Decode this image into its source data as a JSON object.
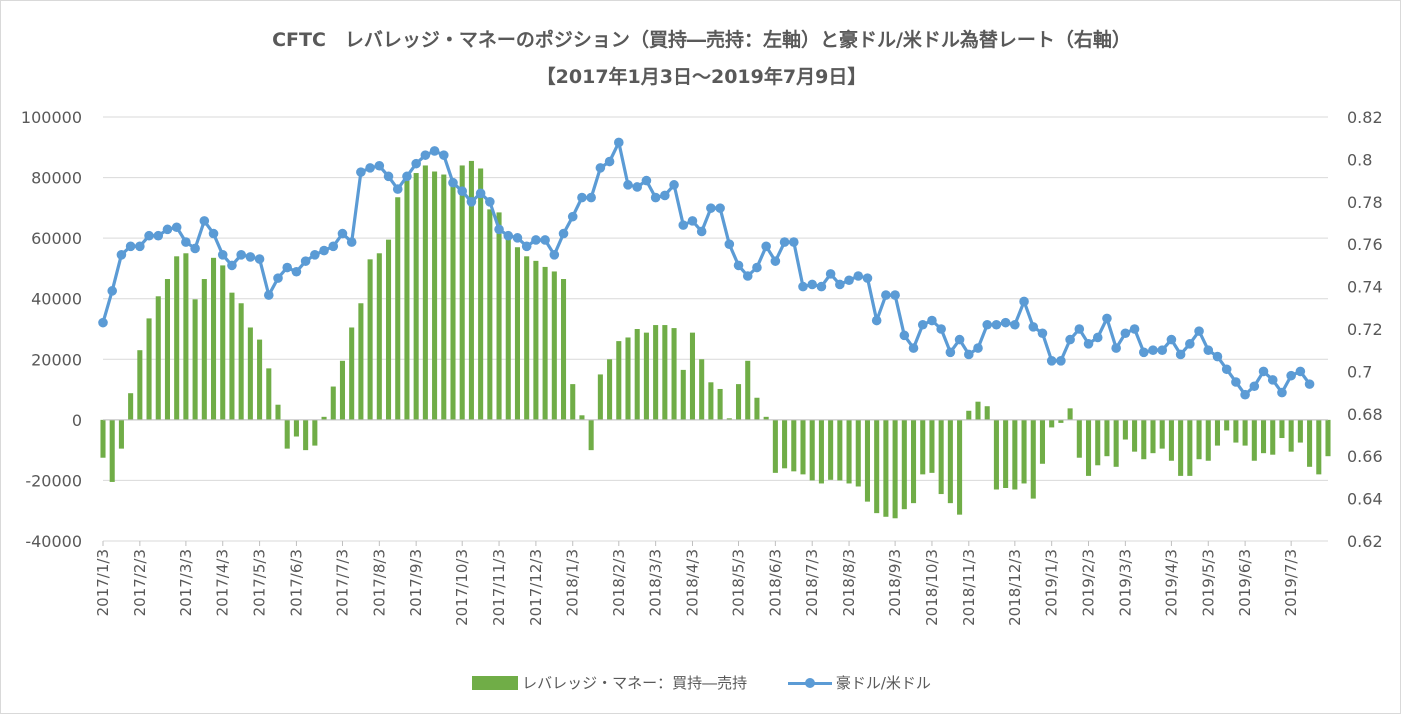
{
  "title_line1": "CFTC　レバレッジ・マネーのポジション（買持―売持：左軸）と豪ドル/米ドル為替レート（右軸）",
  "title_line2": "【2017年1月3日～2019年7月9日】",
  "legend": {
    "bar_label": "レバレッジ・マネー：買持―売持",
    "line_label": "豪ドル/米ドル"
  },
  "colors": {
    "bar": "#70ad47",
    "line": "#5b9bd5",
    "grid": "#d9d9d9",
    "text": "#595959"
  },
  "chart_data": {
    "type": "bar+line",
    "y_left": {
      "min": -40000,
      "max": 100000,
      "step": 20000,
      "ticks": [
        "100000",
        "80000",
        "60000",
        "40000",
        "20000",
        "0",
        "-20000",
        "-40000"
      ]
    },
    "y_right": {
      "min": 0.62,
      "max": 0.82,
      "step": 0.02,
      "ticks": [
        "0.82",
        "0.8",
        "0.78",
        "0.76",
        "0.74",
        "0.72",
        "0.7",
        "0.68",
        "0.66",
        "0.64",
        "0.62"
      ]
    },
    "x_tick_labels": [
      "2017/1/3",
      "2017/2/3",
      "2017/3/3",
      "2017/4/3",
      "2017/5/3",
      "2017/6/3",
      "2017/7/3",
      "2017/8/3",
      "2017/9/3",
      "2017/10/3",
      "2017/11/3",
      "2017/12/3",
      "2018/1/3",
      "2018/2/3",
      "2018/3/3",
      "2018/4/3",
      "2018/5/3",
      "2018/6/3",
      "2018/7/3",
      "2018/8/3",
      "2018/9/3",
      "2018/10/3",
      "2018/11/3",
      "2018/12/3",
      "2019/1/3",
      "2019/2/3",
      "2019/3/3",
      "2019/4/3",
      "2019/5/3",
      "2019/6/3",
      "2019/7/3"
    ],
    "series": [
      {
        "name": "レバレッジ・マネー：買持―売持",
        "kind": "bar",
        "axis": "left",
        "values": [
          -12500,
          -20500,
          -9500,
          8800,
          23000,
          33500,
          40800,
          46500,
          54000,
          55000,
          39800,
          46500,
          53500,
          51000,
          42000,
          38500,
          30500,
          26500,
          17000,
          5000,
          -9500,
          -5500,
          -10000,
          -8500,
          1000,
          11000,
          19500,
          30500,
          38500,
          53000,
          55000,
          59500,
          73500,
          79500,
          81500,
          84000,
          82000,
          81000,
          78500,
          84000,
          85500,
          83000,
          69500,
          68500,
          62000,
          57000,
          54000,
          52500,
          50500,
          49000,
          46500,
          11800,
          1500,
          -10000,
          15000,
          20000,
          26000,
          27200,
          30000,
          28800,
          31300,
          31300,
          30300,
          16500,
          28800,
          20000,
          12400,
          10200,
          500,
          11800,
          19500,
          7300,
          1000,
          -17500,
          -16000,
          -17000,
          -18000,
          -20000,
          -21000,
          -19800,
          -20000,
          -21000,
          -22000,
          -27000,
          -30800,
          -32000,
          -32500,
          -29500,
          -27500,
          -18000,
          -17500,
          -24500,
          -27500,
          -31300,
          3000,
          6000,
          4500,
          -23000,
          -22500,
          -23000,
          -21000,
          -26000,
          -14500,
          -2500,
          -1000,
          3800,
          -12500,
          -18500,
          -15000,
          -12000,
          -15500,
          -6500,
          -10500,
          -13000,
          -11000,
          -9500,
          -13500,
          -18500,
          -18500,
          -13000,
          -13500,
          -8500,
          -3500,
          -7500,
          -8500,
          -13500,
          -11000,
          -11500,
          -6000,
          -10500,
          -7500,
          -15500,
          -18000,
          -12000
        ]
      },
      {
        "name": "豪ドル/米ドル",
        "kind": "line",
        "axis": "right",
        "values": [
          0.723,
          0.738,
          0.755,
          0.759,
          0.759,
          0.764,
          0.764,
          0.767,
          0.768,
          0.761,
          0.758,
          0.771,
          0.765,
          0.755,
          0.75,
          0.755,
          0.754,
          0.753,
          0.736,
          0.744,
          0.749,
          0.747,
          0.752,
          0.755,
          0.757,
          0.759,
          0.765,
          0.761,
          0.794,
          0.796,
          0.797,
          0.792,
          0.786,
          0.792,
          0.798,
          0.802,
          0.804,
          0.802,
          0.789,
          0.785,
          0.78,
          0.784,
          0.78,
          0.767,
          0.764,
          0.763,
          0.759,
          0.762,
          0.762,
          0.755,
          0.765,
          0.773,
          0.782,
          0.782,
          0.796,
          0.799,
          0.808,
          0.788,
          0.787,
          0.79,
          0.782,
          0.783,
          0.788,
          0.769,
          0.771,
          0.766,
          0.777,
          0.777,
          0.76,
          0.75,
          0.745,
          0.749,
          0.759,
          0.752,
          0.761,
          0.761,
          0.74,
          0.741,
          0.74,
          0.746,
          0.741,
          0.743,
          0.745,
          0.744,
          0.724,
          0.736,
          0.736,
          0.717,
          0.711,
          0.722,
          0.724,
          0.72,
          0.709,
          0.715,
          0.708,
          0.711,
          0.722,
          0.722,
          0.723,
          0.722,
          0.733,
          0.721,
          0.718,
          0.705,
          0.705,
          0.715,
          0.72,
          0.713,
          0.716,
          0.725,
          0.711,
          0.718,
          0.72,
          0.709,
          0.71,
          0.71,
          0.715,
          0.708,
          0.713,
          0.719,
          0.71,
          0.707,
          0.701,
          0.695,
          0.689,
          0.693,
          0.7,
          0.696,
          0.69,
          0.698,
          0.7,
          0.694
        ]
      }
    ]
  }
}
